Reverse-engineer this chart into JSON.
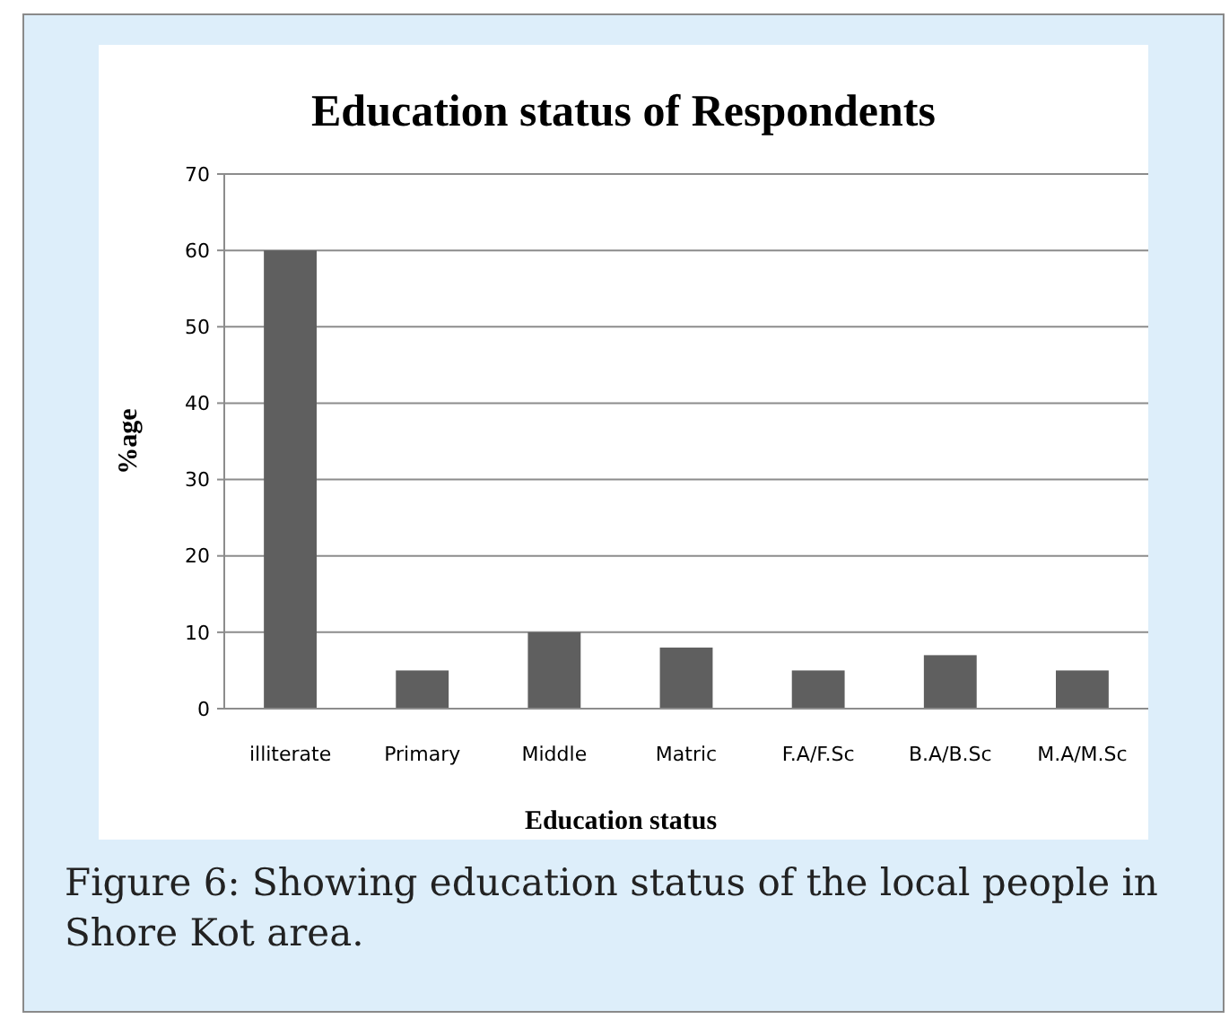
{
  "chart_data": {
    "type": "bar",
    "title": "Education status of Respondents",
    "xlabel": "Education status",
    "ylabel": "%age",
    "categories": [
      "illiterate",
      "Primary",
      "Middle",
      "Matric",
      "F.A/F.Sc",
      "B.A/B.Sc",
      "M.A/M.Sc"
    ],
    "values": [
      60,
      5,
      10,
      8,
      5,
      7,
      5
    ],
    "color": "#5f5f5f",
    "ylim": [
      0,
      70
    ],
    "yticks": [
      0,
      10,
      20,
      30,
      40,
      50,
      60,
      70
    ],
    "grid": "y",
    "annotations": [
      "Figure 6: Showing education status of the local people in Shore Kot area."
    ]
  }
}
